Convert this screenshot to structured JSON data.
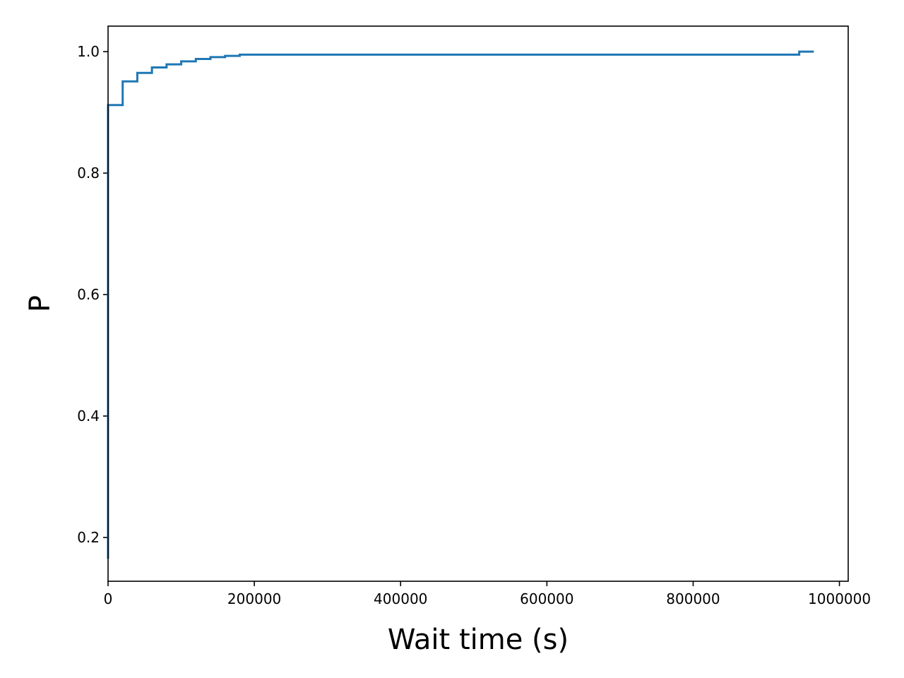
{
  "chart_data": {
    "type": "line",
    "step": true,
    "title": "",
    "xlabel": "Wait time (s)",
    "ylabel": "P",
    "xlim": [
      0,
      1012000
    ],
    "ylim": [
      0.128,
      1.042
    ],
    "grid": false,
    "legend": "none",
    "x_ticks": [
      0,
      200000,
      400000,
      600000,
      800000,
      1000000
    ],
    "x_tick_labels": [
      "0",
      "200000",
      "400000",
      "600000",
      "800000",
      "1000000"
    ],
    "y_ticks": [
      0.2,
      0.4,
      0.6,
      0.8,
      1.0
    ],
    "y_tick_labels": [
      "0.2",
      "0.4",
      "0.6",
      "0.8",
      "1.0"
    ],
    "colors": {
      "series": "#1f77b4",
      "axes": "#000000"
    },
    "series": [
      {
        "x": [
          0,
          0,
          20000,
          40000,
          60000,
          80000,
          100000,
          120000,
          140000,
          160000,
          180000,
          945000,
          965000
        ],
        "y": [
          0.165,
          0.912,
          0.951,
          0.965,
          0.974,
          0.979,
          0.984,
          0.988,
          0.991,
          0.993,
          0.995,
          1.0,
          1.0
        ]
      }
    ]
  }
}
